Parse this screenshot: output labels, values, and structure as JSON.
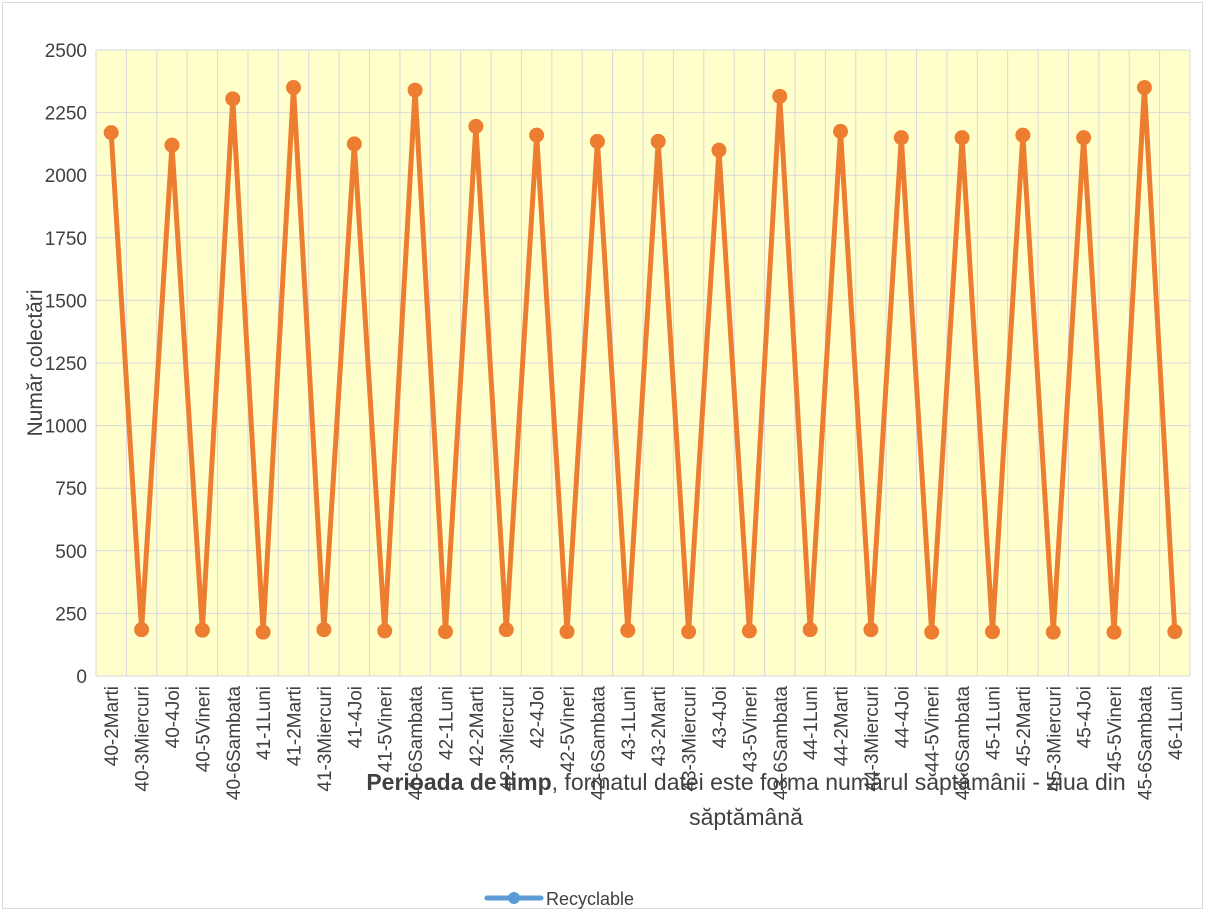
{
  "chart_data": {
    "type": "line",
    "title": "",
    "ylabel": "Număr colectări",
    "xlabel_bold": "Perioada de timp",
    "xlabel_line1_rest": ", formatul datei este forma numărul săptămânii - ziua din",
    "xlabel_line2": "săptămână",
    "ylim": [
      0,
      2500
    ],
    "yticks": [
      0,
      250,
      500,
      750,
      1000,
      1250,
      1500,
      1750,
      2000,
      2250,
      2500
    ],
    "grid": true,
    "legend_position": "bottom",
    "plot_background": "#ffffcc",
    "grid_color": "#d9d9d9",
    "series_color": "#ed7d31",
    "legend_marker_color": "#5b9bd5",
    "categories": [
      "40-2Marti",
      "40-3Miercuri",
      "40-4Joi",
      "40-5Vineri",
      "40-6Sambata",
      "41-1Luni",
      "41-2Marti",
      "41-3Miercuri",
      "41-4Joi",
      "41-5Vineri",
      "41-6Sambata",
      "42-1Luni",
      "42-2Marti",
      "42-3Miercuri",
      "42-4Joi",
      "42-5Vineri",
      "42-6Sambata",
      "43-1Luni",
      "43-2Marti",
      "43-3Miercuri",
      "43-4Joi",
      "43-5Vineri",
      "43-6Sambata",
      "44-1Luni",
      "44-2Marti",
      "44-3Miercuri",
      "44-4Joi",
      "44-5Vineri",
      "44-6Sambata",
      "45-1Luni",
      "45-2Marti",
      "45-3Miercuri",
      "45-4Joi",
      "45-5Vineri",
      "45-6Sambata",
      "46-1Luni"
    ],
    "series": [
      {
        "name": "Recyclable",
        "values": [
          2170,
          185,
          2120,
          183,
          2305,
          175,
          2350,
          185,
          2125,
          180,
          2340,
          177,
          2195,
          185,
          2160,
          177,
          2135,
          182,
          2135,
          177,
          2100,
          180,
          2315,
          185,
          2175,
          185,
          2150,
          175,
          2150,
          177,
          2160,
          175,
          2150,
          175,
          2350,
          177
        ]
      }
    ]
  }
}
